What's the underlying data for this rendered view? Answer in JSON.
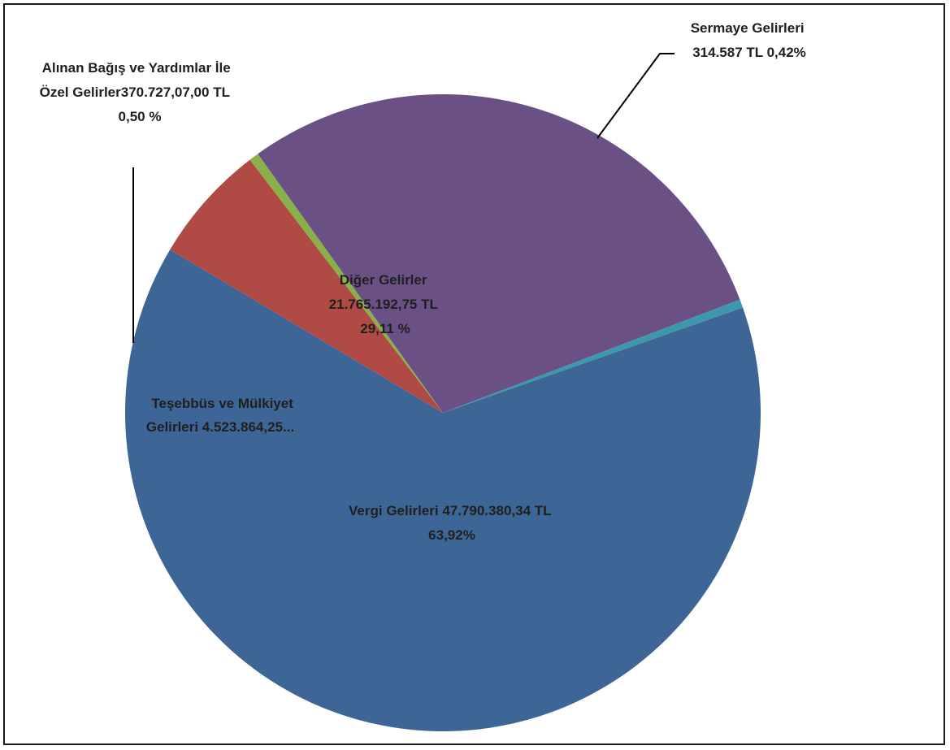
{
  "chart_data": {
    "type": "pie",
    "title": "",
    "slices": [
      {
        "key": "vergi",
        "name": "Vergi Gelirleri",
        "value": 47790380.34,
        "percent": 63.92,
        "color": "#3d6696",
        "label_lines": [
          "Vergi Gelirleri 47.790.380,34 TL",
          "63,92%"
        ]
      },
      {
        "key": "tesebbus",
        "name": "Teşebbüs ve Mülkiyet Gelirleri",
        "value": 4523864.25,
        "percent": 6.05,
        "color": "#b04a45",
        "label_lines": [
          "Teşebbüs ve Mülkiyet",
          "Gelirleri 4.523.864,25..."
        ]
      },
      {
        "key": "bagis",
        "name": "Alınan Bağış ve Yardımlar İle Özel Gelirler",
        "value": 370727.07,
        "percent": 0.5,
        "color": "#8ab04a",
        "label_lines": [
          "Alınan Bağış ve Yardımlar İle",
          "Özel Gelirler370.727,07,00 TL",
          "0,50 %"
        ]
      },
      {
        "key": "diger",
        "name": "Diğer Gelirler",
        "value": 21765192.75,
        "percent": 29.11,
        "color": "#6a5085",
        "label_lines": [
          "Diğer Gelirler",
          "21.765.192,75 TL",
          "29,11 %"
        ]
      },
      {
        "key": "sermaye",
        "name": "Sermaye Gelirleri",
        "value": 314587,
        "percent": 0.42,
        "color": "#3d97ad",
        "label_lines": [
          "Sermaye Gelirleri",
          "314.587 TL 0,42%"
        ]
      }
    ],
    "legend": "none"
  }
}
